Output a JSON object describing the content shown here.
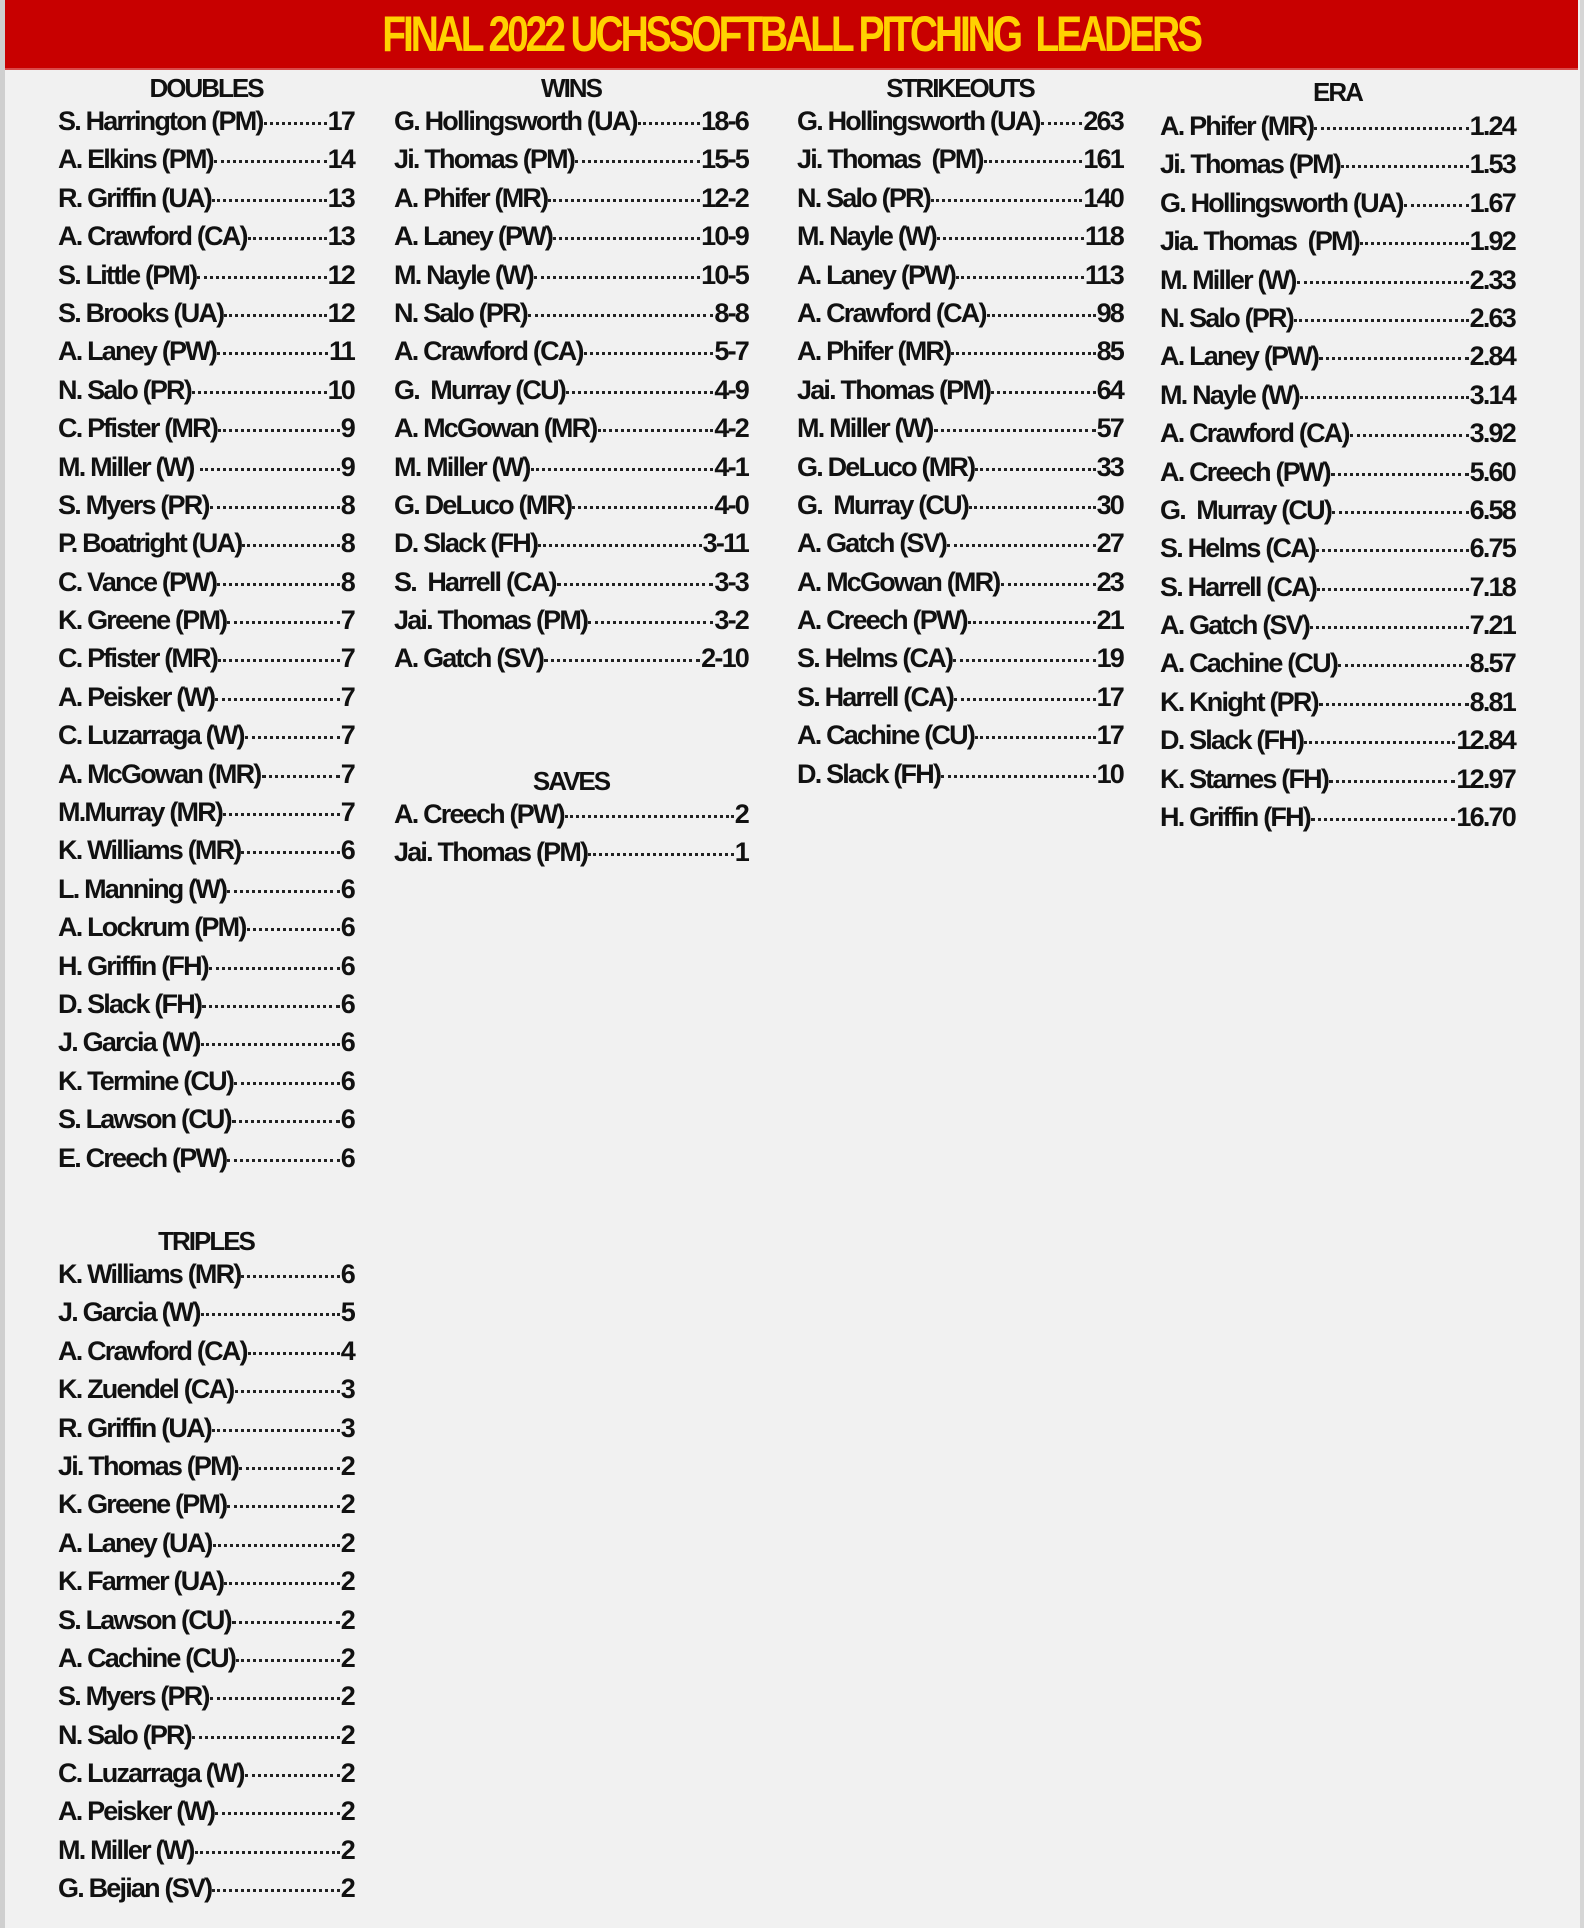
{
  "title": "FINAL 2022 UCHSSOFTBALL PITCHING  LEADERS",
  "colors": {
    "banner": "#c80000",
    "title": "#ffd200",
    "background": "#f1f1f1"
  },
  "doubles": {
    "title": "DOUBLES",
    "rows": [
      {
        "name": "S. Harrington (PM)",
        "value": "17"
      },
      {
        "name": "A. Elkins (PM)",
        "value": "14"
      },
      {
        "name": "R. Griffin (UA)",
        "value": "13"
      },
      {
        "name": "A. Crawford (CA)",
        "value": "13"
      },
      {
        "name": "S. Little (PM)",
        "value": "12"
      },
      {
        "name": "S. Brooks (UA)",
        "value": "12"
      },
      {
        "name": "A. Laney (PW)",
        "value": "11"
      },
      {
        "name": "N. Salo (PR)",
        "value": "10"
      },
      {
        "name": "C. Pfister (MR)",
        "value": "9"
      },
      {
        "name": "M. Miller (W) ",
        "value": "9"
      },
      {
        "name": "S. Myers (PR)",
        "value": "8"
      },
      {
        "name": "P. Boatright (UA)",
        "value": "8"
      },
      {
        "name": "C. Vance (PW)",
        "value": "8"
      },
      {
        "name": "K. Greene (PM)",
        "value": "7"
      },
      {
        "name": "C. Pfister (MR)",
        "value": "7"
      },
      {
        "name": "A. Peisker (W)",
        "value": "7"
      },
      {
        "name": "C. Luzarraga (W)",
        "value": "7"
      },
      {
        "name": "A. McGowan (MR)",
        "value": "7"
      },
      {
        "name": "M.Murray (MR)",
        "value": "7"
      },
      {
        "name": "K. Williams (MR)",
        "value": "6"
      },
      {
        "name": "L. Manning (W)",
        "value": "6"
      },
      {
        "name": "A. Lockrum (PM)",
        "value": "6"
      },
      {
        "name": "H. Griffin (FH)",
        "value": "6"
      },
      {
        "name": "D. Slack (FH)",
        "value": "6"
      },
      {
        "name": "J. Garcia (W)",
        "value": "6"
      },
      {
        "name": "K. Termine (CU)",
        "value": "6"
      },
      {
        "name": "S. Lawson (CU)",
        "value": "6"
      },
      {
        "name": "E. Creech (PW)",
        "value": "6"
      }
    ]
  },
  "triples": {
    "title": "TRIPLES",
    "rows": [
      {
        "name": "K. Williams (MR)",
        "value": "6"
      },
      {
        "name": "J. Garcia (W)",
        "value": "5"
      },
      {
        "name": "A. Crawford (CA)",
        "value": "4"
      },
      {
        "name": "K. Zuendel (CA)",
        "value": "3"
      },
      {
        "name": "R. Griffin (UA)",
        "value": "3"
      },
      {
        "name": "Ji. Thomas (PM)",
        "value": "2"
      },
      {
        "name": "K. Greene (PM)",
        "value": "2"
      },
      {
        "name": "A. Laney (UA)",
        "value": "2"
      },
      {
        "name": "K. Farmer (UA)",
        "value": "2"
      },
      {
        "name": "S. Lawson (CU)",
        "value": "2"
      },
      {
        "name": "A. Cachine (CU)",
        "value": "2"
      },
      {
        "name": "S. Myers (PR)",
        "value": "2"
      },
      {
        "name": "N. Salo (PR)",
        "value": "2"
      },
      {
        "name": "C. Luzarraga (W)",
        "value": "2"
      },
      {
        "name": "A. Peisker (W)",
        "value": "2"
      },
      {
        "name": "M. Miller (W)",
        "value": "2"
      },
      {
        "name": "G. Bejian (SV)",
        "value": "2"
      }
    ]
  },
  "wins": {
    "title": "WINS",
    "rows": [
      {
        "name": "G. Hollingsworth (UA)",
        "value": "18-6"
      },
      {
        "name": "Ji. Thomas (PM)",
        "value": "15-5"
      },
      {
        "name": "A. Phifer (MR)",
        "value": "12-2"
      },
      {
        "name": "A. Laney (PW)",
        "value": "10-9"
      },
      {
        "name": "M. Nayle (W)",
        "value": "10-5"
      },
      {
        "name": "N. Salo (PR)",
        "value": "8-8"
      },
      {
        "name": "A. Crawford (CA)",
        "value": "5-7"
      },
      {
        "name": "G.  Murray (CU)",
        "value": "4-9"
      },
      {
        "name": "A. McGowan (MR)",
        "value": "4-2"
      },
      {
        "name": "M. Miller (W)",
        "value": "4-1"
      },
      {
        "name": "G. DeLuco (MR)",
        "value": "4-0"
      },
      {
        "name": "D. Slack (FH)",
        "value": "3-11"
      },
      {
        "name": "S.  Harrell (CA)",
        "value": "3-3"
      },
      {
        "name": "Jai. Thomas (PM)",
        "value": "3-2"
      },
      {
        "name": "A. Gatch (SV)",
        "value": "2-10"
      }
    ]
  },
  "saves": {
    "title": "SAVES",
    "rows": [
      {
        "name": "A. Creech (PW)",
        "value": "2"
      },
      {
        "name": "Jai. Thomas (PM)",
        "value": "1"
      }
    ]
  },
  "strikeouts": {
    "title": "STRIKEOUTS",
    "rows": [
      {
        "name": "G. Hollingsworth (UA)",
        "value": "263"
      },
      {
        "name": "Ji. Thomas  (PM)",
        "value": "161"
      },
      {
        "name": "N. Salo (PR)",
        "value": "140"
      },
      {
        "name": "M. Nayle (W)",
        "value": "118"
      },
      {
        "name": "A. Laney (PW)",
        "value": "113"
      },
      {
        "name": "A. Crawford (CA)",
        "value": "98"
      },
      {
        "name": "A. Phifer (MR)",
        "value": "85"
      },
      {
        "name": "Jai. Thomas (PM)",
        "value": "64"
      },
      {
        "name": "M. Miller (W)",
        "value": "57"
      },
      {
        "name": "G. DeLuco (MR)",
        "value": "33"
      },
      {
        "name": "G.  Murray (CU)",
        "value": "30"
      },
      {
        "name": "A. Gatch (SV)",
        "value": "27"
      },
      {
        "name": "A. McGowan (MR)",
        "value": "23"
      },
      {
        "name": "A. Creech (PW)",
        "value": "21"
      },
      {
        "name": "S. Helms (CA)",
        "value": "19"
      },
      {
        "name": "S. Harrell (CA)",
        "value": "17"
      },
      {
        "name": "A. Cachine (CU)",
        "value": "17"
      },
      {
        "name": "D. Slack (FH)",
        "value": "10"
      }
    ]
  },
  "era": {
    "title": "ERA",
    "rows": [
      {
        "name": "A. Phifer (MR)",
        "value": "1.24"
      },
      {
        "name": "Ji. Thomas (PM)",
        "value": "1.53"
      },
      {
        "name": "G. Hollingsworth (UA)",
        "value": "1.67"
      },
      {
        "name": "Jia. Thomas  (PM)",
        "value": "1.92"
      },
      {
        "name": "M. Miller (W)",
        "value": "2.33"
      },
      {
        "name": "N. Salo (PR)",
        "value": "2.63"
      },
      {
        "name": "A. Laney (PW)",
        "value": "2.84"
      },
      {
        "name": "M. Nayle (W)",
        "value": "3.14"
      },
      {
        "name": "A. Crawford (CA)",
        "value": "3.92"
      },
      {
        "name": "A. Creech (PW)",
        "value": "5.60"
      },
      {
        "name": "G.  Murray (CU)",
        "value": "6.58"
      },
      {
        "name": "S. Helms (CA)",
        "value": "6.75"
      },
      {
        "name": "S. Harrell (CA)",
        "value": "7.18"
      },
      {
        "name": "A. Gatch (SV)",
        "value": "7.21"
      },
      {
        "name": "A. Cachine (CU)",
        "value": "8.57"
      },
      {
        "name": "K. Knight (PR)",
        "value": "8.81"
      },
      {
        "name": "D. Slack (FH)",
        "value": "12.84"
      },
      {
        "name": "K. Starnes (FH)",
        "value": "12.97"
      },
      {
        "name": "H. Griffin (FH)",
        "value": "16.70"
      }
    ]
  }
}
